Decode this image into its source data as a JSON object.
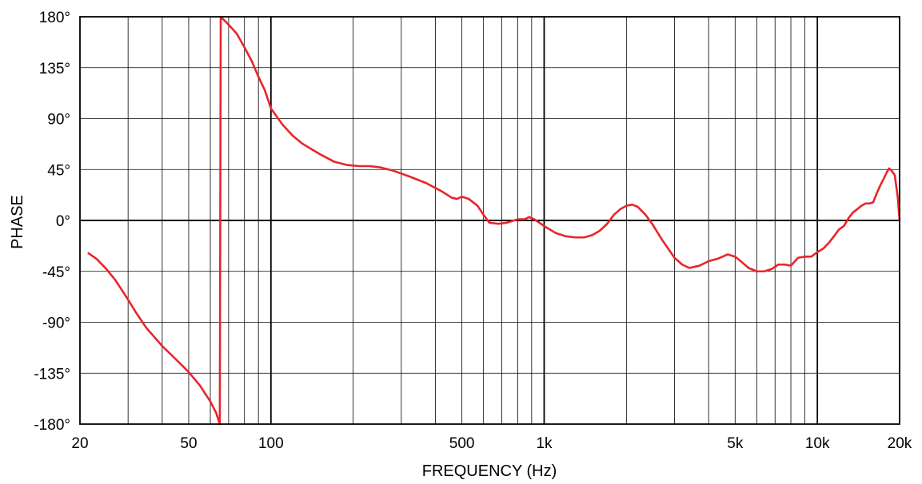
{
  "chart_data": {
    "type": "line",
    "title": "",
    "xlabel": "FREQUENCY (Hz)",
    "ylabel": "PHASE",
    "xscale": "log",
    "xlim": [
      20,
      20000
    ],
    "ylim": [
      -180,
      180
    ],
    "grid": true,
    "legend": "none",
    "line_color": "#e8252b",
    "x_major_ticks": [
      100,
      1000,
      10000
    ],
    "x_minor_ticks": [
      30,
      40,
      50,
      60,
      70,
      80,
      90,
      200,
      300,
      400,
      500,
      600,
      700,
      800,
      900,
      2000,
      3000,
      4000,
      5000,
      6000,
      7000,
      8000,
      9000
    ],
    "x_tick_labels": [
      {
        "value": 20,
        "label": "20"
      },
      {
        "value": 50,
        "label": "50"
      },
      {
        "value": 100,
        "label": "100"
      },
      {
        "value": 500,
        "label": "500"
      },
      {
        "value": 1000,
        "label": "1k"
      },
      {
        "value": 5000,
        "label": "5k"
      },
      {
        "value": 10000,
        "label": "10k"
      },
      {
        "value": 20000,
        "label": "20k"
      }
    ],
    "y_ticks": [
      {
        "value": 180,
        "label": "180°"
      },
      {
        "value": 135,
        "label": "135°"
      },
      {
        "value": 90,
        "label": "90°"
      },
      {
        "value": 45,
        "label": "45°"
      },
      {
        "value": 0,
        "label": "0°"
      },
      {
        "value": -45,
        "label": "-45°"
      },
      {
        "value": -90,
        "label": "-90°"
      },
      {
        "value": -135,
        "label": "-135°"
      },
      {
        "value": -180,
        "label": "-180°"
      }
    ],
    "series": [
      {
        "points": [
          [
            21.5,
            -29
          ],
          [
            23,
            -34
          ],
          [
            25,
            -43
          ],
          [
            27,
            -53
          ],
          [
            30,
            -70
          ],
          [
            32,
            -81
          ],
          [
            35,
            -95
          ],
          [
            40,
            -111
          ],
          [
            45,
            -123
          ],
          [
            50,
            -134
          ],
          [
            55,
            -146
          ],
          [
            60,
            -160
          ],
          [
            63,
            -170
          ],
          [
            65,
            -180
          ],
          [
            65.5,
            180
          ],
          [
            70,
            173
          ],
          [
            75,
            165
          ],
          [
            80,
            153
          ],
          [
            85,
            141
          ],
          [
            90,
            127
          ],
          [
            95,
            115
          ],
          [
            100,
            99
          ],
          [
            110,
            85
          ],
          [
            120,
            75
          ],
          [
            130,
            68
          ],
          [
            150,
            59
          ],
          [
            170,
            52
          ],
          [
            190,
            49
          ],
          [
            210,
            48
          ],
          [
            230,
            48
          ],
          [
            250,
            47
          ],
          [
            280,
            44
          ],
          [
            320,
            39
          ],
          [
            370,
            33
          ],
          [
            420,
            26
          ],
          [
            460,
            20
          ],
          [
            480,
            19
          ],
          [
            500,
            21
          ],
          [
            530,
            19
          ],
          [
            570,
            13
          ],
          [
            600,
            5
          ],
          [
            630,
            -2
          ],
          [
            680,
            -3
          ],
          [
            730,
            -2
          ],
          [
            800,
            1
          ],
          [
            850,
            1
          ],
          [
            880,
            3
          ],
          [
            920,
            1
          ],
          [
            960,
            -2
          ],
          [
            1000,
            -5
          ],
          [
            1050,
            -8
          ],
          [
            1100,
            -11
          ],
          [
            1200,
            -14
          ],
          [
            1300,
            -15
          ],
          [
            1400,
            -15
          ],
          [
            1500,
            -13
          ],
          [
            1600,
            -9
          ],
          [
            1700,
            -3
          ],
          [
            1800,
            5
          ],
          [
            1900,
            10
          ],
          [
            2000,
            13
          ],
          [
            2100,
            14
          ],
          [
            2200,
            12
          ],
          [
            2350,
            5
          ],
          [
            2500,
            -4
          ],
          [
            2700,
            -17
          ],
          [
            3000,
            -33
          ],
          [
            3200,
            -39
          ],
          [
            3400,
            -42
          ],
          [
            3700,
            -40
          ],
          [
            4000,
            -36
          ],
          [
            4300,
            -34
          ],
          [
            4500,
            -32
          ],
          [
            4700,
            -30
          ],
          [
            5000,
            -32
          ],
          [
            5300,
            -37
          ],
          [
            5600,
            -42
          ],
          [
            6000,
            -45
          ],
          [
            6400,
            -45
          ],
          [
            6800,
            -43
          ],
          [
            7200,
            -39
          ],
          [
            7600,
            -39
          ],
          [
            8000,
            -40
          ],
          [
            8500,
            -33
          ],
          [
            9000,
            -32
          ],
          [
            9500,
            -32
          ],
          [
            10000,
            -28
          ],
          [
            10500,
            -25
          ],
          [
            11000,
            -20
          ],
          [
            11500,
            -14
          ],
          [
            12000,
            -8
          ],
          [
            12500,
            -5
          ],
          [
            13000,
            2
          ],
          [
            13500,
            7
          ],
          [
            14000,
            10
          ],
          [
            14500,
            13
          ],
          [
            15000,
            15
          ],
          [
            15500,
            15
          ],
          [
            16000,
            16
          ],
          [
            16500,
            24
          ],
          [
            17000,
            31
          ],
          [
            17500,
            37
          ],
          [
            18000,
            43
          ],
          [
            18300,
            46
          ],
          [
            18700,
            44
          ],
          [
            19200,
            40
          ],
          [
            19700,
            20
          ],
          [
            20000,
            0
          ]
        ]
      }
    ]
  }
}
